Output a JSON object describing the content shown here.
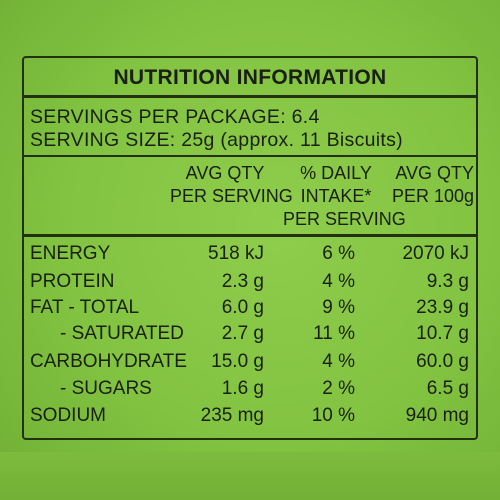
{
  "panel": {
    "title": "NUTRITION INFORMATION",
    "servings_per_package": "SERVINGS PER PACKAGE: 6.4",
    "serving_size": "SERVING SIZE: 25g (approx. 11 Biscuits)"
  },
  "columns": [
    {
      "lines": [
        "AVG QTY",
        "PER SERVING"
      ]
    },
    {
      "lines": [
        "% DAILY",
        "INTAKE*",
        "PER SERVING"
      ]
    },
    {
      "lines": [
        "AVG QTY",
        "PER 100g"
      ]
    }
  ],
  "rows": [
    {
      "label": "ENERGY",
      "per_serving": "518 kJ",
      "daily_intake": "6 %",
      "per_100g": "2070 kJ"
    },
    {
      "label": "PROTEIN",
      "per_serving": "2.3 g",
      "daily_intake": "4 %",
      "per_100g": "9.3 g"
    },
    {
      "label": "FAT - TOTAL",
      "per_serving": "6.0 g",
      "daily_intake": "9 %",
      "per_100g": "23.9 g"
    },
    {
      "label": "- SATURATED",
      "per_serving": "2.7 g",
      "daily_intake": "11 %",
      "per_100g": "10.7 g"
    },
    {
      "label": "CARBOHYDRATE",
      "per_serving": "15.0 g",
      "daily_intake": "4 %",
      "per_100g": "60.0 g"
    },
    {
      "label": "- SUGARS",
      "per_serving": "1.6 g",
      "daily_intake": "2 %",
      "per_100g": "6.5 g"
    },
    {
      "label": "SODIUM",
      "per_serving": "235 mg",
      "daily_intake": "10 %",
      "per_100g": "940 mg"
    }
  ],
  "colors": {
    "background": "#82c341",
    "ink": "#1a1f12"
  }
}
